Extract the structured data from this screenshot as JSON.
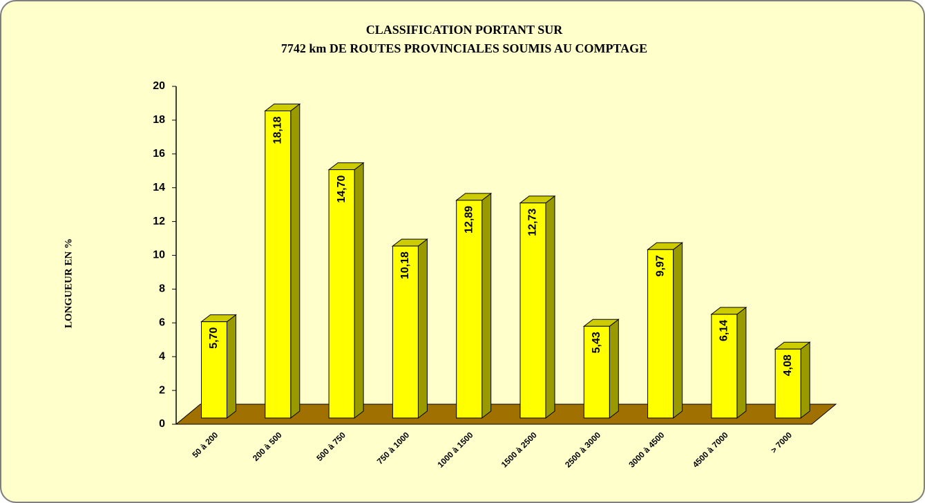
{
  "chart_data": {
    "type": "bar3d",
    "title": [
      "CLASSIFICATION PORTANT SUR",
      "7742 km DE ROUTES PROVINCIALES SOUMIS AU COMPTAGE"
    ],
    "y_label": "LONGUEUR EN %",
    "categories": [
      "50 à 200",
      "200 à 500",
      "500 à 750",
      "750 à 1000",
      "1000 à 1500",
      "1500 à 2500",
      "2500 à 3000",
      "3000 à 4500",
      "4500 à 7000",
      "> 7000"
    ],
    "values": [
      5.7,
      18.18,
      14.7,
      10.18,
      12.89,
      12.73,
      5.43,
      9.97,
      6.14,
      4.08
    ],
    "value_labels": [
      "5,70",
      "18,18",
      "14,70",
      "10,18",
      "12,89",
      "12,73",
      "5,43",
      "9,97",
      "6,14",
      "4,08"
    ],
    "color": "#ffff00",
    "ylim": [
      0,
      20
    ],
    "yticks": [
      0,
      2,
      4,
      6,
      8,
      10,
      12,
      14,
      16,
      18,
      20
    ]
  }
}
